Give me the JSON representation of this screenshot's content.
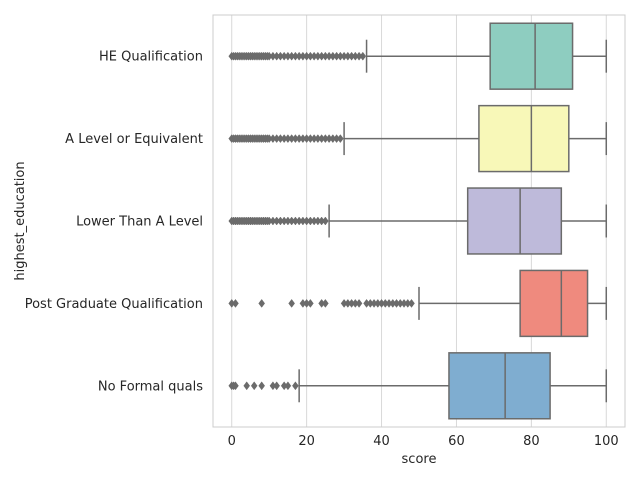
{
  "chart_data": {
    "type": "boxplot",
    "orientation": "horizontal",
    "xlabel": "score",
    "ylabel": "highest_education",
    "xlim": [
      -5,
      105
    ],
    "xticks": [
      0,
      20,
      40,
      60,
      80,
      100
    ],
    "grid": "vertical",
    "colors": {
      "box_edge": "#6b6b6b",
      "grid": "#d8d8d8",
      "spine": "#cccccc"
    },
    "categories": [
      {
        "name": "HE Qualification",
        "color": "#8ecdc0",
        "q1": 69,
        "median": 81,
        "q3": 91,
        "whisker_low": 36,
        "whisker_high": 100,
        "outliers": [
          0,
          0.5,
          1,
          1.5,
          2,
          2.5,
          3,
          3.5,
          4,
          4.5,
          5,
          5.5,
          6,
          6.5,
          7,
          7.5,
          8,
          8.5,
          9,
          9.5,
          10,
          11,
          12,
          13,
          14,
          15,
          16,
          17,
          18,
          19,
          20,
          21,
          22,
          23,
          24,
          25,
          26,
          27,
          28,
          29,
          30,
          31,
          32,
          33,
          34,
          35
        ]
      },
      {
        "name": "A Level or Equivalent",
        "color": "#f8f8b8",
        "q1": 66,
        "median": 80,
        "q3": 90,
        "whisker_low": 30,
        "whisker_high": 100,
        "outliers": [
          0,
          0.5,
          1,
          1.5,
          2,
          2.5,
          3,
          3.5,
          4,
          4.5,
          5,
          5.5,
          6,
          6.5,
          7,
          7.5,
          8,
          8.5,
          9,
          9.5,
          10,
          11,
          12,
          13,
          14,
          15,
          16,
          17,
          18,
          19,
          20,
          21,
          22,
          23,
          24,
          25,
          26,
          27,
          28,
          29
        ]
      },
      {
        "name": "Lower Than A Level",
        "color": "#bebada",
        "q1": 63,
        "median": 77,
        "q3": 88,
        "whisker_low": 26,
        "whisker_high": 100,
        "outliers": [
          0,
          0.5,
          1,
          1.5,
          2,
          2.5,
          3,
          3.5,
          4,
          4.5,
          5,
          5.5,
          6,
          6.5,
          7,
          7.5,
          8,
          8.5,
          9,
          9.5,
          10,
          11,
          12,
          13,
          14,
          15,
          16,
          17,
          18,
          19,
          20,
          21,
          22,
          23,
          24,
          25
        ]
      },
      {
        "name": "Post Graduate Qualification",
        "color": "#ef8a7e",
        "q1": 77,
        "median": 88,
        "q3": 95,
        "whisker_low": 50,
        "whisker_high": 100,
        "outliers": [
          0,
          1,
          8,
          16,
          19,
          20,
          21,
          24,
          25,
          30,
          31,
          32,
          33,
          34,
          36,
          37,
          38,
          39,
          40,
          41,
          42,
          43,
          44,
          45,
          46,
          47,
          48
        ]
      },
      {
        "name": "No Formal quals",
        "color": "#7fadd0",
        "q1": 58,
        "median": 73,
        "q3": 85,
        "whisker_low": 18,
        "whisker_high": 100,
        "outliers": [
          0,
          0.5,
          1,
          4,
          6,
          8,
          11,
          12,
          14,
          15,
          17
        ]
      }
    ]
  }
}
